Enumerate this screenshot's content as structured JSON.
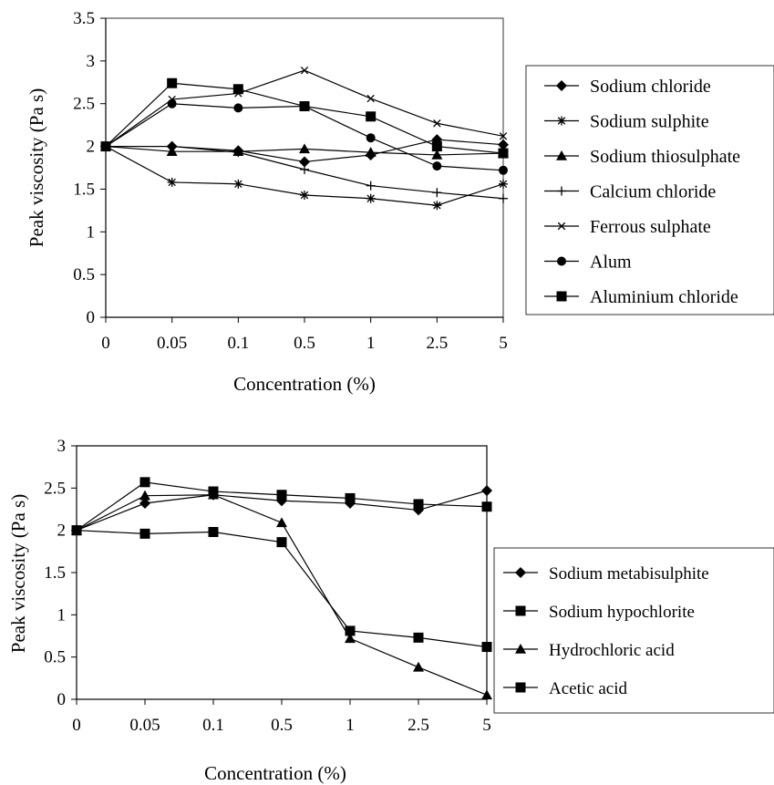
{
  "chart_data": [
    {
      "type": "line",
      "title": "",
      "xlabel": "Concentration (%)",
      "ylabel": "Peak viscosity (Pa s)",
      "categories": [
        "0",
        "0.05",
        "0.1",
        "0.5",
        "1",
        "2.5",
        "5"
      ],
      "y_ticks": [
        "0",
        "0.5",
        "1",
        "1.5",
        "2",
        "2.5",
        "3",
        "3.5"
      ],
      "ylim": [
        0,
        3.5
      ],
      "grid": false,
      "legend_position": "right",
      "series": [
        {
          "name": "Sodium chloride",
          "marker": "diamond",
          "values": [
            2.0,
            2.0,
            1.95,
            1.82,
            1.9,
            2.08,
            2.02
          ]
        },
        {
          "name": "Sodium sulphite",
          "marker": "asterisk",
          "values": [
            2.0,
            1.58,
            1.56,
            1.43,
            1.39,
            1.31,
            1.56
          ]
        },
        {
          "name": "Sodium thiosulphate",
          "marker": "triangle",
          "values": [
            2.0,
            1.94,
            1.94,
            1.97,
            1.93,
            1.9,
            1.92
          ]
        },
        {
          "name": "Calcium chloride",
          "marker": "plus",
          "values": [
            2.0,
            2.0,
            1.93,
            1.73,
            1.54,
            1.46,
            1.39
          ]
        },
        {
          "name": "Ferrous sulphate",
          "marker": "x",
          "values": [
            2.0,
            2.55,
            2.62,
            2.89,
            2.56,
            2.27,
            2.12
          ]
        },
        {
          "name": "Alum",
          "marker": "circle",
          "values": [
            2.0,
            2.5,
            2.45,
            2.47,
            2.1,
            1.77,
            1.72
          ]
        },
        {
          "name": "Aluminium chloride",
          "marker": "square",
          "values": [
            2.0,
            2.74,
            2.67,
            2.47,
            2.35,
            2.0,
            1.92
          ]
        }
      ]
    },
    {
      "type": "line",
      "title": "",
      "xlabel": "Concentration (%)",
      "ylabel": "Peak viscosity (Pa s)",
      "categories": [
        "0",
        "0.05",
        "0.1",
        "0.5",
        "1",
        "2.5",
        "5"
      ],
      "y_ticks": [
        "0",
        "0.5",
        "1",
        "1.5",
        "2",
        "2.5",
        "3"
      ],
      "ylim": [
        0,
        3
      ],
      "grid": false,
      "legend_position": "right",
      "series": [
        {
          "name": "Sodium metabisulphite",
          "marker": "diamond",
          "values": [
            2.0,
            2.32,
            2.42,
            2.35,
            2.32,
            2.24,
            2.47
          ]
        },
        {
          "name": "Sodium hypochlorite",
          "marker": "square",
          "values": [
            2.0,
            1.96,
            1.98,
            1.86,
            0.81,
            0.73,
            0.62
          ]
        },
        {
          "name": "Hydrochloric acid",
          "marker": "triangle",
          "values": [
            2.0,
            2.41,
            2.42,
            2.09,
            0.72,
            0.38,
            0.05
          ]
        },
        {
          "name": "Acetic acid",
          "marker": "square",
          "values": [
            2.0,
            2.57,
            2.46,
            2.42,
            2.38,
            2.31,
            2.28
          ]
        }
      ]
    }
  ]
}
